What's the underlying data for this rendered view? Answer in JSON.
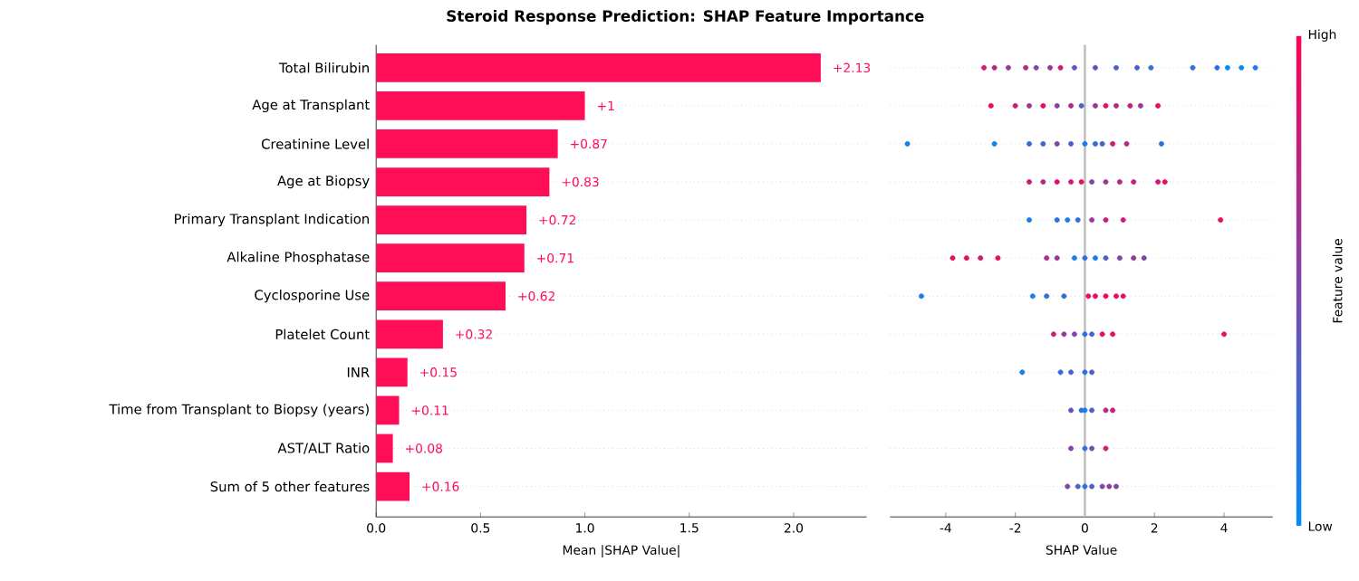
{
  "chart_data": [
    {
      "type": "bar",
      "orientation": "horizontal",
      "title": "Steroid Response Prediction: SHAP Feature Importance",
      "xlabel": "Mean |SHAP Value|",
      "categories": [
        "Total Bilirubin",
        "Age at Transplant",
        "Creatinine Level",
        "Age at Biopsy",
        "Primary Transplant Indication",
        "Alkaline Phosphatase",
        "Cyclosporine Use",
        "Platelet Count",
        "INR",
        "Time from Transplant to Biopsy (years)",
        "AST/ALT Ratio",
        "Sum of 5 other features"
      ],
      "values": [
        2.13,
        1,
        0.87,
        0.83,
        0.72,
        0.71,
        0.62,
        0.32,
        0.15,
        0.11,
        0.08,
        0.16
      ],
      "value_labels": [
        "+2.13",
        "+1",
        "+0.87",
        "+0.83",
        "+0.72",
        "+0.71",
        "+0.62",
        "+0.32",
        "+0.15",
        "+0.11",
        "+0.08",
        "+0.16"
      ],
      "color": "#ff0d57",
      "xlim": [
        0,
        2.35
      ],
      "xticks": [
        {
          "value": 0,
          "label": "0.0"
        },
        {
          "value": 0.5,
          "label": "0.5"
        },
        {
          "value": 1,
          "label": "1.0"
        },
        {
          "value": 1.5,
          "label": "1.5"
        },
        {
          "value": 2,
          "label": "2.0"
        }
      ],
      "grid": "y"
    },
    {
      "type": "scatter",
      "orientation": "horizontal",
      "xlabel": "SHAP Value",
      "clabel": "Feature value",
      "annotations": [
        "High",
        "Low"
      ],
      "tick_labels": "x",
      "marker": "circle",
      "grid": "y",
      "xlim": [
        -5.6,
        5.4
      ],
      "xticks": [
        -4,
        -2,
        0,
        2,
        4
      ],
      "ref_lines": [
        {
          "axis": "x",
          "value": 0,
          "color": "#bbbbbb"
        }
      ],
      "series": [
        {
          "values": [
            -2.9,
            -2.7,
            -5.1,
            -1.6,
            -1.6,
            -3.8,
            -4.7,
            -0.9,
            -1.8,
            -0.4,
            -0.4,
            -0.5
          ],
          "colors": [
            "#cc1c74",
            "#e50e63",
            "#1a7dea",
            "#cc1c74",
            "#1a7dea",
            "#e50e63",
            "#1a7dea",
            "#cc1c74",
            "#1a7dea",
            "#6653b7",
            "#7f46a6",
            "#7f46a6"
          ]
        },
        {
          "values": [
            -2.6,
            -2.0,
            -2.6,
            -1.2,
            -0.8,
            -3.4,
            -1.5,
            -0.6,
            -0.7,
            -0.1,
            0.0,
            -0.2
          ],
          "colors": [
            "#b22a85",
            "#cc1c74",
            "#1a7dea",
            "#b22a85",
            "#336fd9",
            "#e50e63",
            "#1a7dea",
            "#993896",
            "#336fd9",
            "#336fd9",
            "#336fd9",
            "#4c61c8"
          ]
        },
        {
          "values": [
            -2.2,
            -1.6,
            -1.6,
            -0.8,
            -0.5,
            -3.0,
            -1.1,
            -0.3,
            -0.4,
            0.0,
            0.2,
            0.0
          ],
          "colors": [
            "#993896",
            "#993896",
            "#336fd9",
            "#e50e63",
            "#1a7dea",
            "#cc1c74",
            "#336fd9",
            "#7f46a6",
            "#4c61c8",
            "#1a7dea",
            "#6653b7",
            "#336fd9"
          ]
        },
        {
          "values": [
            -1.7,
            -1.2,
            -1.2,
            -0.4,
            -0.2,
            -2.5,
            -0.6,
            0.0,
            0.0,
            0.2,
            0.6,
            0.2
          ],
          "colors": [
            "#b22a85",
            "#e50e63",
            "#4c61c8",
            "#cc1c74",
            "#336fd9",
            "#e50e63",
            "#336fd9",
            "#336fd9",
            "#336fd9",
            "#4c61c8",
            "#cc1c74",
            "#4c61c8"
          ]
        },
        {
          "values": [
            -1.4,
            -0.8,
            -0.8,
            -0.1,
            0.2,
            -1.1,
            0.1,
            0.2,
            0.2,
            0.6,
            null,
            0.5
          ],
          "colors": [
            "#7f46a6",
            "#7f46a6",
            "#7f46a6",
            "#e50e63",
            "#993896",
            "#b22a85",
            "#e50e63",
            "#4c61c8",
            "#4c61c8",
            "#b22a85",
            null,
            "#7f46a6"
          ]
        },
        {
          "values": [
            -1.0,
            -0.4,
            -0.4,
            0.2,
            0.6,
            -0.8,
            0.3,
            0.5,
            null,
            0.8,
            null,
            0.7
          ],
          "colors": [
            "#993896",
            "#b22a85",
            "#4c61c8",
            "#7f46a6",
            "#cc1c74",
            "#993896",
            "#e50e63",
            "#e50e63",
            null,
            "#cc1c74",
            null,
            "#993896"
          ]
        },
        {
          "values": [
            -0.7,
            -0.1,
            0.0,
            0.6,
            1.1,
            -0.3,
            0.6,
            0.8,
            null,
            null,
            null,
            0.9
          ],
          "colors": [
            "#cc1c74",
            "#4c61c8",
            "#1a7dea",
            "#993896",
            "#cc1c74",
            "#1a7dea",
            "#ff0052",
            "#e50e63",
            null,
            null,
            null,
            "#7f46a6"
          ]
        },
        {
          "values": [
            -0.3,
            0.3,
            0.3,
            1.0,
            3.9,
            0.0,
            0.9,
            4.0,
            null,
            null,
            null,
            null
          ],
          "colors": [
            "#6653b7",
            "#993896",
            "#336fd9",
            "#b22a85",
            "#e50e63",
            "#336fd9",
            "#e50e63",
            "#e50e63",
            null,
            null,
            null,
            null
          ]
        },
        {
          "values": [
            0.3,
            0.6,
            0.5,
            1.4,
            null,
            0.3,
            1.1,
            null,
            null,
            null,
            null,
            null
          ],
          "colors": [
            "#6653b7",
            "#e50e63",
            "#4c61c8",
            "#cc1c74",
            null,
            "#1a7dea",
            "#e50e63",
            null,
            null,
            null,
            null,
            null
          ]
        },
        {
          "values": [
            0.9,
            0.9,
            0.8,
            2.1,
            null,
            0.6,
            null,
            null,
            null,
            null,
            null,
            null
          ],
          "colors": [
            "#4c61c8",
            "#b22a85",
            "#cc1c74",
            "#cc1c74",
            null,
            "#4c61c8",
            null,
            null,
            null,
            null,
            null,
            null
          ]
        },
        {
          "values": [
            1.5,
            1.3,
            1.2,
            2.3,
            null,
            1.0,
            null,
            null,
            null,
            null,
            null,
            null
          ],
          "colors": [
            "#4c61c8",
            "#cc1c74",
            "#b22a85",
            "#e50e63",
            null,
            "#7f46a6",
            null,
            null,
            null,
            null,
            null,
            null
          ]
        },
        {
          "values": [
            1.9,
            1.6,
            2.2,
            null,
            null,
            1.4,
            null,
            null,
            null,
            null,
            null,
            null
          ],
          "colors": [
            "#336fd9",
            "#993896",
            "#336fd9",
            null,
            null,
            "#993896",
            null,
            null,
            null,
            null,
            null,
            null
          ]
        },
        {
          "values": [
            3.1,
            2.1,
            null,
            null,
            null,
            1.7,
            null,
            null,
            null,
            null,
            null,
            null
          ],
          "colors": [
            "#336fd9",
            "#e50e63",
            null,
            null,
            null,
            "#7f46a6",
            null,
            null,
            null,
            null,
            null,
            null
          ]
        },
        {
          "values": [
            3.8,
            null,
            null,
            null,
            null,
            null,
            null,
            null,
            null,
            null,
            null,
            null
          ],
          "color": "#336fd9"
        },
        {
          "values": [
            4.1,
            null,
            null,
            null,
            null,
            null,
            null,
            null,
            null,
            null,
            null,
            null
          ],
          "color": "#008bfb"
        },
        {
          "values": [
            4.5,
            null,
            null,
            null,
            null,
            null,
            null,
            null,
            null,
            null,
            null,
            null
          ],
          "color": "#008bfb"
        },
        {
          "values": [
            4.9,
            null,
            null,
            null,
            null,
            null,
            null,
            null,
            null,
            null,
            null,
            null
          ],
          "color": "#1a7dea"
        }
      ]
    }
  ]
}
